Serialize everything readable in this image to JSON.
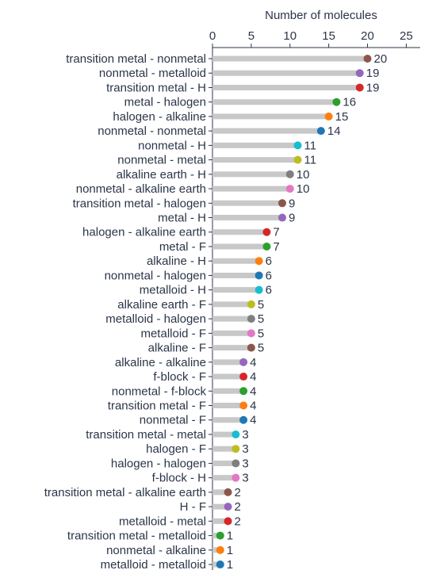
{
  "chart_data": {
    "type": "lollipop",
    "x_label": "Number of molecules",
    "categories": [
      "transition metal - nonmetal",
      "nonmetal - metalloid",
      "transition metal - H",
      "metal - halogen",
      "halogen - alkaline",
      "nonmetal - nonmetal",
      "nonmetal - H",
      "nonmetal - metal",
      "alkaline earth - H",
      "nonmetal - alkaline earth",
      "transition metal - halogen",
      "metal - H",
      "halogen - alkaline earth",
      "metal - F",
      "alkaline - H",
      "nonmetal - halogen",
      "metalloid - H",
      "alkaline earth - F",
      "metalloid - halogen",
      "metalloid - F",
      "alkaline - F",
      "alkaline - alkaline",
      "f-block - F",
      "nonmetal - f-block",
      "transition metal - F",
      "nonmetal - F",
      "transition metal - metal",
      "halogen - F",
      "halogen - halogen",
      "f-block - H",
      "transition metal - alkaline earth",
      "H - F",
      "metalloid - metal",
      "transition metal - metalloid",
      "nonmetal - alkaline",
      "metalloid - metalloid"
    ],
    "values": [
      20,
      19,
      19,
      16,
      15,
      14,
      11,
      11,
      10,
      10,
      9,
      9,
      7,
      7,
      6,
      6,
      6,
      5,
      5,
      5,
      5,
      4,
      4,
      4,
      4,
      4,
      3,
      3,
      3,
      3,
      2,
      2,
      2,
      1,
      1,
      1
    ],
    "colors": [
      "#8c564b",
      "#9467bd",
      "#d62728",
      "#2ca02c",
      "#ff7f0e",
      "#1f77b4",
      "#17becf",
      "#bcbd22",
      "#7f7f7f",
      "#e377c2"
    ],
    "stem_color": "#c8c8c8",
    "xlim": [
      0,
      26.8
    ],
    "xticks": [
      0,
      5,
      10,
      15,
      20,
      25
    ],
    "x_axis_position": "top"
  }
}
